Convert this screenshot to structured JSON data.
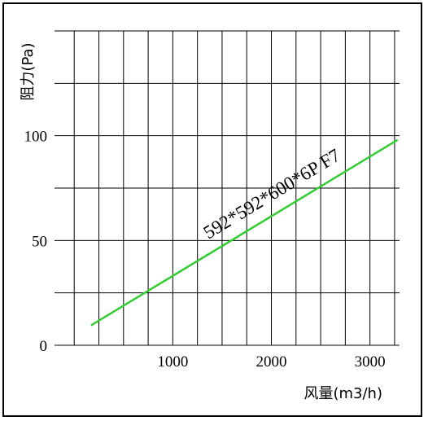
{
  "chart_data": {
    "type": "line",
    "title": "",
    "xlabel": "风量(m3/h)",
    "ylabel": "阻力(Pa)",
    "xlim": [
      -200,
      3300
    ],
    "ylim": [
      0,
      150
    ],
    "x_ticks": [
      1000,
      2000,
      3000
    ],
    "y_ticks": [
      0,
      50,
      100
    ],
    "grid": true,
    "series": [
      {
        "name": "592*592*600*6P  F7",
        "color": "#33cc33",
        "x": [
          170,
          3280
        ],
        "y": [
          9.5,
          98
        ]
      }
    ]
  }
}
